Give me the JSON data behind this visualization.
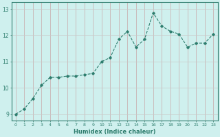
{
  "x": [
    0,
    1,
    2,
    3,
    4,
    5,
    6,
    7,
    8,
    9,
    10,
    11,
    12,
    13,
    14,
    15,
    16,
    17,
    18,
    19,
    20,
    21,
    22,
    23
  ],
  "y": [
    9.0,
    9.2,
    9.6,
    10.1,
    10.4,
    10.4,
    10.45,
    10.45,
    10.5,
    10.55,
    11.0,
    11.15,
    11.85,
    12.15,
    11.55,
    11.85,
    12.85,
    12.35,
    12.15,
    12.05,
    11.55,
    11.7,
    11.7,
    12.05
  ],
  "line_color": "#2e7d6e",
  "marker_color": "#2e7d6e",
  "bg_color": "#cff0ee",
  "grid_color_v": "#c8a8a8",
  "grid_color_h": "#c8c8c8",
  "axis_color": "#2e7d6e",
  "xlabel": "Humidex (Indice chaleur)",
  "xlim": [
    -0.5,
    23.5
  ],
  "ylim": [
    8.75,
    13.25
  ],
  "yticks": [
    9,
    10,
    11,
    12,
    13
  ],
  "xticks": [
    0,
    1,
    2,
    3,
    4,
    5,
    6,
    7,
    8,
    9,
    10,
    11,
    12,
    13,
    14,
    15,
    16,
    17,
    18,
    19,
    20,
    21,
    22,
    23
  ]
}
